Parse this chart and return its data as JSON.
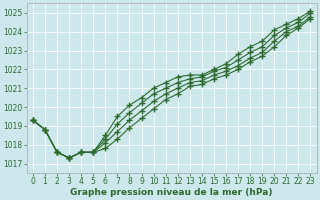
{
  "xlabel": "Graphe pression niveau de la mer (hPa)",
  "x": [
    0,
    1,
    2,
    3,
    4,
    5,
    6,
    7,
    8,
    9,
    10,
    11,
    12,
    13,
    14,
    15,
    16,
    17,
    18,
    19,
    20,
    21,
    22,
    23
  ],
  "lines": [
    [
      1019.3,
      1018.8,
      1017.6,
      1017.3,
      1017.6,
      1017.6,
      1018.5,
      1019.5,
      1020.1,
      1020.5,
      1021.0,
      1021.3,
      1021.6,
      1021.7,
      1021.7,
      1022.0,
      1022.3,
      1022.8,
      1023.2,
      1023.5,
      1024.1,
      1024.4,
      1024.7,
      1025.1
    ],
    [
      1019.3,
      1018.8,
      1017.6,
      1017.3,
      1017.6,
      1017.6,
      1018.3,
      1019.1,
      1019.7,
      1020.2,
      1020.7,
      1021.0,
      1021.3,
      1021.5,
      1021.6,
      1021.9,
      1022.1,
      1022.5,
      1022.9,
      1023.2,
      1023.8,
      1024.2,
      1024.5,
      1025.0
    ],
    [
      1019.3,
      1018.8,
      1017.6,
      1017.3,
      1017.6,
      1017.6,
      1018.1,
      1018.7,
      1019.3,
      1019.8,
      1020.3,
      1020.7,
      1021.0,
      1021.3,
      1021.4,
      1021.7,
      1021.9,
      1022.2,
      1022.6,
      1022.9,
      1023.5,
      1024.0,
      1024.3,
      1024.8
    ],
    [
      1019.3,
      1018.8,
      1017.6,
      1017.3,
      1017.6,
      1017.6,
      1017.8,
      1018.3,
      1018.9,
      1019.4,
      1019.9,
      1020.4,
      1020.7,
      1021.1,
      1021.2,
      1021.5,
      1021.7,
      1022.0,
      1022.4,
      1022.7,
      1023.2,
      1023.8,
      1024.2,
      1024.7
    ]
  ],
  "line_color": "#2d6a2d",
  "marker": "+",
  "markersize": 4,
  "markeredgewidth": 1.0,
  "linewidth": 0.8,
  "background_color": "#cce8ec",
  "grid_color": "#ffffff",
  "ylim": [
    1016.5,
    1025.5
  ],
  "yticks": [
    1017,
    1018,
    1019,
    1020,
    1021,
    1022,
    1023,
    1024,
    1025
  ],
  "xticks": [
    0,
    1,
    2,
    3,
    4,
    5,
    6,
    7,
    8,
    9,
    10,
    11,
    12,
    13,
    14,
    15,
    16,
    17,
    18,
    19,
    20,
    21,
    22,
    23
  ],
  "tick_color": "#2d6a2d",
  "label_color": "#2d6a2d",
  "tick_fontsize": 5.5,
  "xlabel_fontsize": 6.5,
  "xlabel_fontweight": "bold"
}
